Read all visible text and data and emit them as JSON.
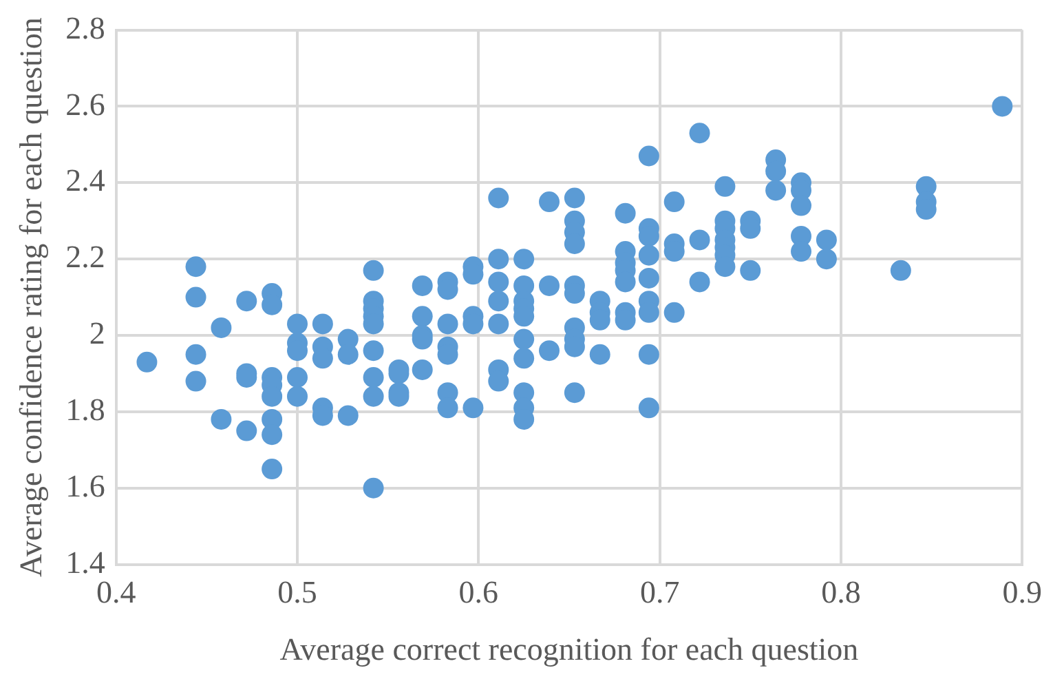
{
  "chart_data": {
    "type": "scatter",
    "xlabel": "Average correct recognition for each question",
    "ylabel": "Average confidence rating for each question",
    "x": [
      0.417,
      0.444,
      0.444,
      0.444,
      0.444,
      0.458,
      0.458,
      0.472,
      0.472,
      0.472,
      0.472,
      0.486,
      0.486,
      0.486,
      0.486,
      0.486,
      0.486,
      0.486,
      0.486,
      0.5,
      0.5,
      0.5,
      0.5,
      0.5,
      0.514,
      0.514,
      0.514,
      0.514,
      0.514,
      0.528,
      0.528,
      0.528,
      0.542,
      0.542,
      0.542,
      0.542,
      0.542,
      0.542,
      0.542,
      0.542,
      0.542,
      0.556,
      0.556,
      0.556,
      0.556,
      0.569,
      0.569,
      0.569,
      0.569,
      0.569,
      0.583,
      0.583,
      0.583,
      0.583,
      0.583,
      0.583,
      0.583,
      0.597,
      0.597,
      0.597,
      0.597,
      0.597,
      0.611,
      0.611,
      0.611,
      0.611,
      0.611,
      0.611,
      0.611,
      0.625,
      0.625,
      0.625,
      0.625,
      0.625,
      0.625,
      0.625,
      0.625,
      0.625,
      0.625,
      0.639,
      0.639,
      0.639,
      0.653,
      0.653,
      0.653,
      0.653,
      0.653,
      0.653,
      0.653,
      0.653,
      0.653,
      0.653,
      0.667,
      0.667,
      0.667,
      0.667,
      0.681,
      0.681,
      0.681,
      0.681,
      0.681,
      0.681,
      0.681,
      0.694,
      0.694,
      0.694,
      0.694,
      0.694,
      0.694,
      0.694,
      0.694,
      0.694,
      0.708,
      0.708,
      0.708,
      0.708,
      0.722,
      0.722,
      0.722,
      0.736,
      0.736,
      0.736,
      0.736,
      0.736,
      0.736,
      0.736,
      0.75,
      0.75,
      0.75,
      0.764,
      0.764,
      0.764,
      0.778,
      0.778,
      0.778,
      0.778,
      0.778,
      0.792,
      0.792,
      0.833,
      0.847,
      0.847,
      0.847,
      0.889
    ],
    "series": [
      {
        "color": "#5b9bd5",
        "values": [
          1.93,
          2.18,
          2.1,
          1.95,
          1.88,
          2.02,
          1.78,
          2.09,
          1.9,
          1.89,
          1.75,
          2.11,
          2.08,
          1.89,
          1.87,
          1.84,
          1.78,
          1.74,
          1.65,
          2.03,
          1.98,
          1.96,
          1.89,
          1.84,
          2.03,
          1.97,
          1.94,
          1.81,
          1.79,
          1.99,
          1.95,
          1.79,
          2.17,
          2.09,
          2.07,
          2.05,
          2.03,
          1.96,
          1.89,
          1.84,
          1.6,
          1.91,
          1.9,
          1.85,
          1.84,
          2.13,
          2.05,
          2.0,
          1.99,
          1.91,
          2.14,
          2.12,
          2.03,
          1.97,
          1.95,
          1.85,
          1.81,
          2.18,
          2.16,
          2.05,
          2.03,
          1.81,
          2.36,
          2.2,
          2.14,
          2.09,
          2.03,
          1.91,
          1.88,
          2.2,
          2.13,
          2.09,
          2.07,
          2.05,
          1.99,
          1.94,
          1.85,
          1.81,
          1.78,
          2.35,
          2.13,
          1.96,
          2.36,
          2.3,
          2.27,
          2.24,
          2.13,
          2.11,
          2.02,
          1.99,
          1.97,
          1.85,
          2.09,
          2.06,
          2.04,
          1.95,
          2.32,
          2.22,
          2.19,
          2.17,
          2.14,
          2.06,
          2.04,
          2.47,
          2.28,
          2.26,
          2.21,
          2.15,
          2.09,
          2.06,
          1.95,
          1.81,
          2.35,
          2.24,
          2.22,
          2.06,
          2.53,
          2.25,
          2.14,
          2.39,
          2.3,
          2.28,
          2.25,
          2.23,
          2.21,
          2.18,
          2.3,
          2.28,
          2.17,
          2.46,
          2.43,
          2.38,
          2.4,
          2.38,
          2.34,
          2.26,
          2.22,
          2.25,
          2.2,
          2.17,
          2.39,
          2.35,
          2.33,
          2.6
        ]
      }
    ],
    "xlim": [
      0.4,
      0.9
    ],
    "xticks": [
      0.4,
      0.5,
      0.6,
      0.7,
      0.8,
      0.9
    ],
    "ylim": [
      1.4,
      2.8
    ],
    "yticks": [
      1.4,
      1.6,
      1.8,
      2,
      2.2,
      2.4,
      2.6,
      2.8
    ],
    "grid": true,
    "legend": false,
    "marker": "circle"
  }
}
